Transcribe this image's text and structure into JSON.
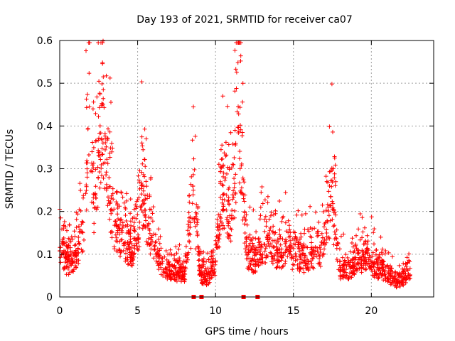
{
  "chart_data": {
    "type": "scatter",
    "title": "Day 193 of 2021, SRMTID for receiver ca07",
    "xlabel": "GPS time / hours",
    "ylabel": "SRMTID / TECUs",
    "xlim": [
      0,
      24
    ],
    "ylim": [
      0,
      0.6
    ],
    "xticks": [
      "0",
      "5",
      "10",
      "15",
      "20"
    ],
    "yticks": [
      "0",
      "0.1",
      "0.2",
      "0.3",
      "0.4",
      "0.5",
      "0.6"
    ],
    "grid": true,
    "marker": "+",
    "color": "#ff0000",
    "summary_series": [
      {
        "x": 0.0,
        "y": 0.15
      },
      {
        "x": 0.5,
        "y": 0.09
      },
      {
        "x": 1.0,
        "y": 0.12
      },
      {
        "x": 1.5,
        "y": 0.18
      },
      {
        "x": 1.9,
        "y": 0.55
      },
      {
        "x": 2.2,
        "y": 0.27
      },
      {
        "x": 2.7,
        "y": 0.5
      },
      {
        "x": 3.0,
        "y": 0.36
      },
      {
        "x": 3.5,
        "y": 0.2
      },
      {
        "x": 4.0,
        "y": 0.17
      },
      {
        "x": 4.5,
        "y": 0.13
      },
      {
        "x": 5.0,
        "y": 0.16
      },
      {
        "x": 5.3,
        "y": 0.31
      },
      {
        "x": 5.8,
        "y": 0.18
      },
      {
        "x": 6.5,
        "y": 0.09
      },
      {
        "x": 7.0,
        "y": 0.06
      },
      {
        "x": 7.5,
        "y": 0.07
      },
      {
        "x": 8.0,
        "y": 0.06
      },
      {
        "x": 8.6,
        "y": 0.28
      },
      {
        "x": 9.0,
        "y": 0.06
      },
      {
        "x": 9.5,
        "y": 0.05
      },
      {
        "x": 10.0,
        "y": 0.1
      },
      {
        "x": 10.5,
        "y": 0.3
      },
      {
        "x": 11.0,
        "y": 0.22
      },
      {
        "x": 11.5,
        "y": 0.5
      },
      {
        "x": 12.0,
        "y": 0.13
      },
      {
        "x": 12.5,
        "y": 0.1
      },
      {
        "x": 13.0,
        "y": 0.14
      },
      {
        "x": 13.5,
        "y": 0.16
      },
      {
        "x": 14.0,
        "y": 0.12
      },
      {
        "x": 14.5,
        "y": 0.14
      },
      {
        "x": 15.0,
        "y": 0.12
      },
      {
        "x": 15.5,
        "y": 0.11
      },
      {
        "x": 16.0,
        "y": 0.1
      },
      {
        "x": 16.5,
        "y": 0.14
      },
      {
        "x": 17.0,
        "y": 0.12
      },
      {
        "x": 17.4,
        "y": 0.3
      },
      {
        "x": 18.0,
        "y": 0.08
      },
      {
        "x": 18.5,
        "y": 0.07
      },
      {
        "x": 19.0,
        "y": 0.1
      },
      {
        "x": 19.5,
        "y": 0.11
      },
      {
        "x": 20.0,
        "y": 0.09
      },
      {
        "x": 20.5,
        "y": 0.08
      },
      {
        "x": 21.0,
        "y": 0.07
      },
      {
        "x": 21.5,
        "y": 0.04
      },
      {
        "x": 22.0,
        "y": 0.05
      },
      {
        "x": 22.5,
        "y": 0.07
      }
    ],
    "zero_markers": [
      8.6,
      9.1,
      11.8,
      12.7
    ],
    "point_count": 2000,
    "random_seed": 193
  }
}
